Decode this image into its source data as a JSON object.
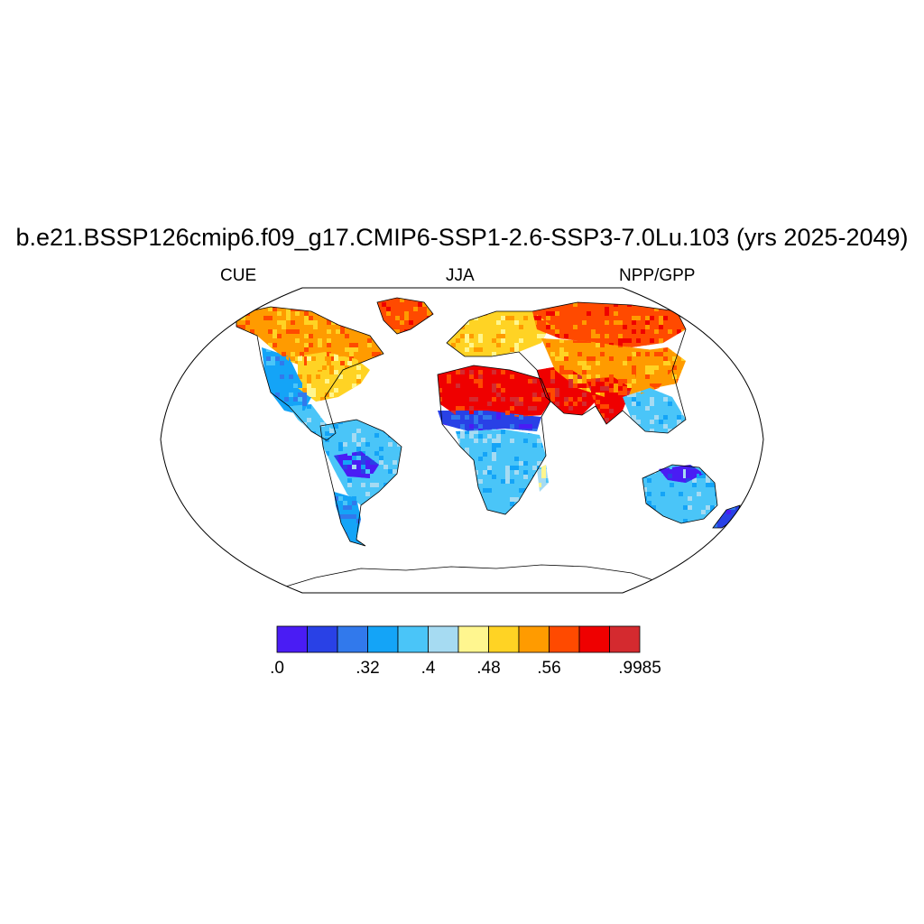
{
  "figure": {
    "title": "b.e21.BSSP126cmip6.f09_g17.CMIP6-SSP1-2.6-SSP3-7.0Lu.103 (yrs 2025-2049)",
    "left_string": "CUE",
    "center_string": "JJA",
    "right_string": "NPP/GPP"
  },
  "map": {
    "projection": "Robinson",
    "field": "NPP/GPP carbon use efficiency, JJA mean",
    "background": "#ffffff",
    "coastline_color": "#000000"
  },
  "colorbar": {
    "colors": [
      "#4a1cf4",
      "#2941e6",
      "#3179ec",
      "#14a4f7",
      "#4ac5f8",
      "#a6dbf2",
      "#fff68f",
      "#ffd324",
      "#ff9b00",
      "#ff4a00",
      "#ef0000",
      "#d42a2f"
    ],
    "labels": [
      ".0",
      ".32",
      ".4",
      ".48",
      ".56",
      ".9985"
    ],
    "label_boundary_index": [
      0,
      3,
      5,
      7,
      9,
      12
    ]
  }
}
